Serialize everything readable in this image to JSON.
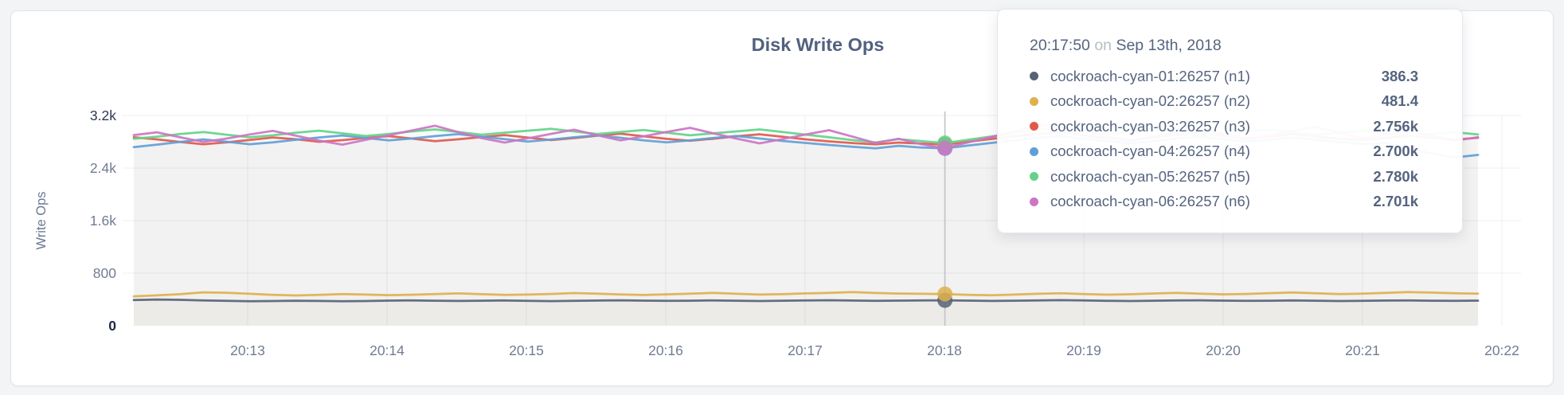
{
  "page": {
    "background": "#f3f4f5"
  },
  "chart_data": {
    "type": "area",
    "title": "Disk Write Ops",
    "ylabel": "Write Ops",
    "xlabel": "",
    "ylim": [
      0,
      3200
    ],
    "grid": true,
    "legend_position": "tooltip-only",
    "y_ticks": [
      {
        "label": "3.2k",
        "value": 3200
      },
      {
        "label": "2.4k",
        "value": 2400
      },
      {
        "label": "1.6k",
        "value": 1600
      },
      {
        "label": "800",
        "value": 800
      },
      {
        "label": "0",
        "value": 0
      }
    ],
    "x_ticks": [
      "20:13",
      "20:14",
      "20:15",
      "20:16",
      "20:17",
      "20:18",
      "20:19",
      "20:20",
      "20:21",
      "20:22"
    ],
    "x_start": "20:12:00",
    "x_interval_seconds": 10,
    "hover": {
      "index": 35,
      "time": "20:17:50"
    },
    "series": [
      {
        "id": "n1",
        "label": "cockroach-cyan-01:26257 (n1)",
        "color": "#566377",
        "values": [
          392,
          399,
          394,
          386,
          379,
          373,
          376,
          381,
          377,
          372,
          376,
          382,
          386,
          381,
          377,
          380,
          384,
          379,
          375,
          379,
          383,
          387,
          382,
          378,
          381,
          385,
          380,
          376,
          380,
          384,
          388,
          383,
          379,
          382,
          386,
          386.3,
          382,
          377,
          381,
          385,
          389,
          384,
          379,
          376,
          380,
          384,
          387,
          382,
          378,
          381,
          385,
          380,
          376,
          379,
          383,
          386,
          381,
          378,
          382
        ]
      },
      {
        "id": "n2",
        "label": "cockroach-cyan-02:26257 (n2)",
        "color": "#deb04f",
        "values": [
          447,
          462,
          480,
          508,
          502,
          486,
          470,
          461,
          470,
          482,
          474,
          465,
          471,
          483,
          492,
          480,
          469,
          474,
          484,
          497,
          488,
          475,
          468,
          477,
          489,
          499,
          486,
          474,
          480,
          492,
          500,
          512,
          498,
          490,
          486,
          481.4,
          470,
          463,
          474,
          486,
          495,
          483,
          473,
          479,
          491,
          500,
          488,
          478,
          484,
          496,
          506,
          493,
          482,
          488,
          500,
          512,
          504,
          494,
          488
        ]
      },
      {
        "id": "n3",
        "label": "cockroach-cyan-03:26257 (n3)",
        "color": "#e0594e",
        "values": [
          2868,
          2836,
          2796,
          2762,
          2790,
          2828,
          2866,
          2838,
          2800,
          2824,
          2858,
          2886,
          2848,
          2808,
          2838,
          2872,
          2902,
          2864,
          2826,
          2856,
          2892,
          2922,
          2884,
          2844,
          2816,
          2846,
          2884,
          2914,
          2876,
          2836,
          2806,
          2780,
          2760,
          2788,
          2772,
          2756,
          2800,
          2842,
          2884,
          2920,
          2948,
          2900,
          2858,
          2828,
          2866,
          2906,
          2936,
          2890,
          2850,
          2880,
          2916,
          2884,
          2846,
          2820,
          2856,
          2894,
          2862,
          2832,
          2860
        ]
      },
      {
        "id": "n4",
        "label": "cockroach-cyan-04:26257 (n4)",
        "color": "#619fd6",
        "values": [
          2718,
          2756,
          2798,
          2836,
          2800,
          2762,
          2792,
          2830,
          2866,
          2896,
          2858,
          2820,
          2850,
          2886,
          2916,
          2878,
          2840,
          2804,
          2834,
          2868,
          2898,
          2860,
          2822,
          2792,
          2822,
          2858,
          2888,
          2850,
          2812,
          2782,
          2752,
          2724,
          2700,
          2738,
          2712,
          2700,
          2742,
          2782,
          2820,
          2856,
          2886,
          2848,
          2810,
          2774,
          2812,
          2848,
          2878,
          2840,
          2802,
          2830,
          2864,
          2832,
          2796,
          2766,
          2780,
          2700,
          2620,
          2560,
          2600
        ]
      },
      {
        "id": "n5",
        "label": "cockroach-cyan-05:26257 (n5)",
        "color": "#64d289",
        "values": [
          2846,
          2878,
          2918,
          2948,
          2908,
          2868,
          2898,
          2938,
          2968,
          2928,
          2888,
          2918,
          2958,
          2988,
          2948,
          2908,
          2938,
          2968,
          2998,
          2958,
          2918,
          2948,
          2978,
          2938,
          2898,
          2928,
          2958,
          2988,
          2948,
          2908,
          2868,
          2826,
          2790,
          2840,
          2810,
          2780,
          2830,
          2880,
          2930,
          2980,
          3024,
          2970,
          2920,
          2950,
          2984,
          2940,
          2896,
          2926,
          2956,
          2986,
          2946,
          2906,
          2936,
          2966,
          2926,
          2886,
          2916,
          2946,
          2910
        ]
      },
      {
        "id": "n6",
        "label": "cockroach-cyan-06:26257 (n6)",
        "color": "#cc75c4",
        "values": [
          2902,
          2944,
          2868,
          2798,
          2848,
          2912,
          2966,
          2892,
          2818,
          2756,
          2828,
          2900,
          2972,
          3044,
          2948,
          2856,
          2788,
          2852,
          2920,
          2984,
          2900,
          2820,
          2882,
          2950,
          3012,
          2928,
          2848,
          2776,
          2840,
          2912,
          2976,
          2880,
          2780,
          2846,
          2760,
          2701,
          2790,
          2872,
          2954,
          3036,
          3090,
          2980,
          2880,
          2806,
          2880,
          2950,
          3010,
          2920,
          2836,
          2896,
          2962,
          3024,
          2936,
          2850,
          2910,
          2974,
          2890,
          2816,
          2870
        ]
      }
    ]
  },
  "tooltip": {
    "time": "20:17:50",
    "connector": "on",
    "date": "Sep 13th, 2018",
    "rows": [
      {
        "name": "cockroach-cyan-01:26257 (n1)",
        "value": "386.3"
      },
      {
        "name": "cockroach-cyan-02:26257 (n2)",
        "value": "481.4"
      },
      {
        "name": "cockroach-cyan-03:26257 (n3)",
        "value": "2.756k"
      },
      {
        "name": "cockroach-cyan-04:26257 (n4)",
        "value": "2.700k"
      },
      {
        "name": "cockroach-cyan-05:26257 (n5)",
        "value": "2.780k"
      },
      {
        "name": "cockroach-cyan-06:26257 (n6)",
        "value": "2.701k"
      }
    ]
  }
}
